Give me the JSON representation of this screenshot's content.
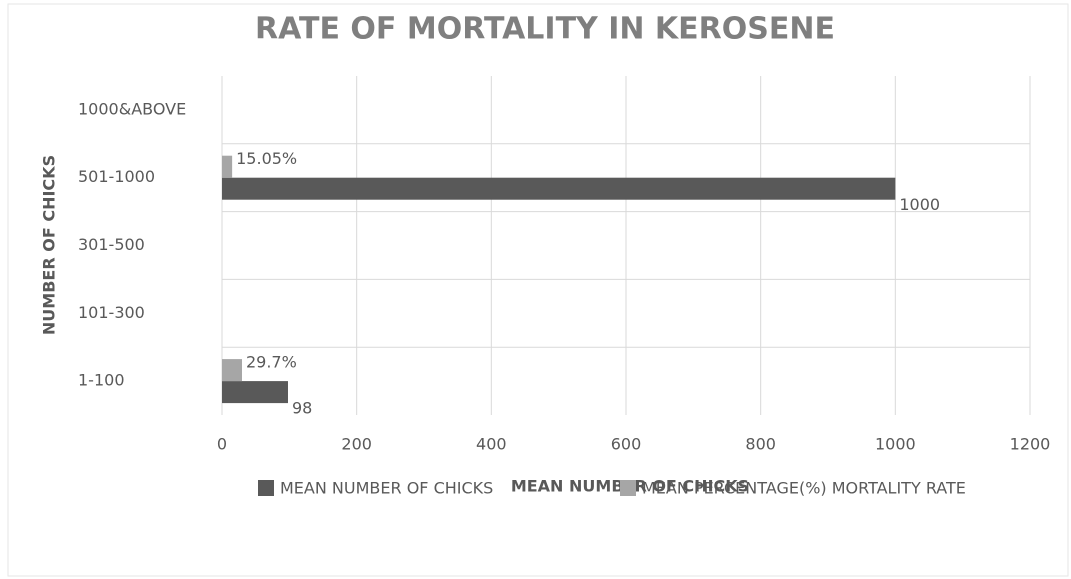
{
  "chart_data": {
    "type": "bar",
    "orientation": "horizontal",
    "title": "RATE OF MORTALITY IN KEROSENE",
    "x_label": "MEAN NUMBER OF CHICKS",
    "y_label": "NUMBER OF CHICKS",
    "categories": [
      "1-100",
      "101-300",
      "301-500",
      "501-1000",
      "1000&ABOVE"
    ],
    "series": [
      {
        "name": "MEAN NUMBER OF CHICKS",
        "color": "#595959",
        "values": [
          98,
          null,
          null,
          1000,
          null
        ]
      },
      {
        "name": "MEAN PERCENTAGE(%) MORTALITY RATE",
        "color": "#a6a6a6",
        "values": [
          29.7,
          null,
          null,
          15.05,
          null
        ],
        "value_labels": [
          "29.7%",
          null,
          null,
          "15.05%",
          null
        ]
      }
    ],
    "xlim": [
      0,
      1200
    ],
    "xticks": [
      0,
      200,
      400,
      600,
      800,
      1000,
      1200
    ],
    "grid": true,
    "legend": "bottom"
  }
}
